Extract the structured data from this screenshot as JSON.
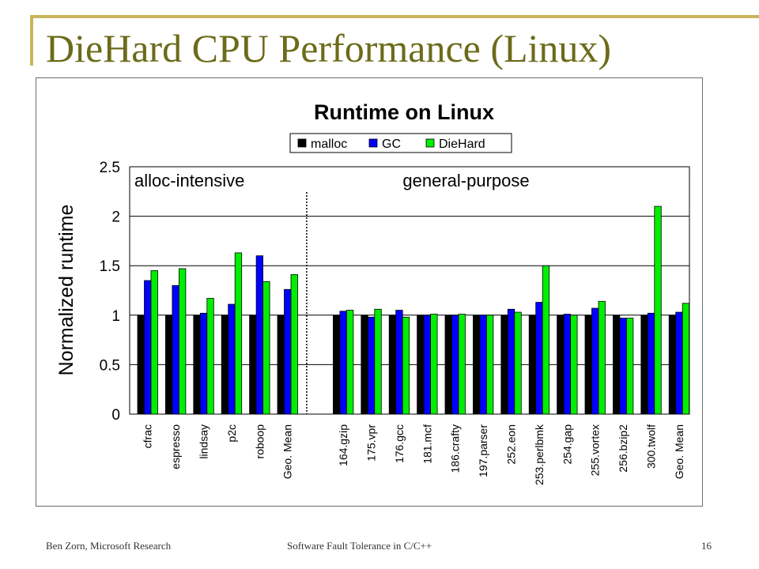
{
  "slide": {
    "title": "DieHard CPU Performance (Linux)",
    "footer_left": "Ben Zorn, Microsoft Research",
    "footer_center": "Software Fault Tolerance in C/C++",
    "page_number": "16"
  },
  "chart_data": {
    "type": "bar",
    "title": "Runtime on Linux",
    "xlabel": "",
    "ylabel": "Normalized runtime",
    "ylim": [
      0,
      2.5
    ],
    "yticks": [
      "0",
      "0.5",
      "1",
      "1.5",
      "2",
      "2.5"
    ],
    "grid": true,
    "legend_position": "top-center",
    "groups": [
      {
        "label": "alloc-intensive",
        "categories": [
          "cfrac",
          "espresso",
          "lindsay",
          "p2c",
          "roboop",
          "Geo. Mean"
        ]
      },
      {
        "label": "general-purpose",
        "categories": [
          "164.gzip",
          "175.vpr",
          "176.gcc",
          "181.mcf",
          "186.crafty",
          "197.parser",
          "252.eon",
          "253.perlbmk",
          "254.gap",
          "255.vortex",
          "256.bzip2",
          "300.twolf",
          "Geo. Mean"
        ]
      }
    ],
    "series": [
      {
        "name": "malloc",
        "color": "#000000",
        "values": [
          1,
          1,
          1,
          1,
          1,
          1,
          1,
          1,
          1,
          1,
          1,
          1,
          1,
          1,
          1,
          1,
          1,
          1,
          1
        ]
      },
      {
        "name": "GC",
        "color": "#0000ff",
        "values": [
          1.35,
          1.3,
          1.02,
          1.11,
          1.6,
          1.26,
          1.04,
          0.98,
          1.05,
          1.0,
          1.0,
          1.0,
          1.06,
          1.13,
          1.01,
          1.07,
          0.97,
          1.02,
          1.03
        ]
      },
      {
        "name": "DieHard",
        "color": "#00ee00",
        "values": [
          1.45,
          1.47,
          1.17,
          1.63,
          1.34,
          1.41,
          1.05,
          1.06,
          0.98,
          1.01,
          1.01,
          1.0,
          1.03,
          1.5,
          1.0,
          1.14,
          0.97,
          2.1,
          1.12
        ]
      }
    ]
  }
}
